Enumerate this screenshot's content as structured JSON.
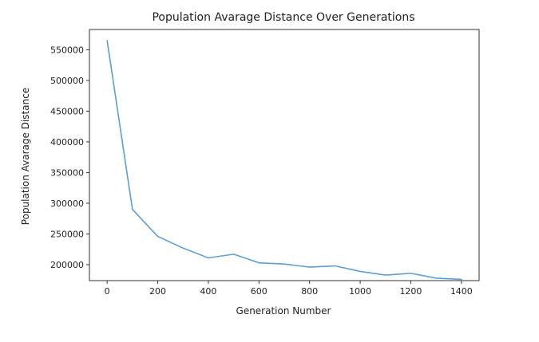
{
  "chart_data": {
    "type": "line",
    "title": "Population Avarage Distance Over Generations",
    "xlabel": "Generation Number",
    "ylabel": "Population Avarage Distance",
    "xlim": [
      -70,
      1470
    ],
    "ylim": [
      174000,
      583000
    ],
    "xticks": [
      0,
      200,
      400,
      600,
      800,
      1000,
      1200,
      1400
    ],
    "xtick_labels": [
      "0",
      "200",
      "400",
      "600",
      "800",
      "1000",
      "1200",
      "1400"
    ],
    "yticks": [
      200000,
      250000,
      300000,
      350000,
      400000,
      450000,
      500000,
      550000
    ],
    "ytick_labels": [
      "200000",
      "250000",
      "300000",
      "350000",
      "400000",
      "450000",
      "500000",
      "550000"
    ],
    "grid": false,
    "legend": "none",
    "series": [
      {
        "name": "Population Avarage Distance",
        "color": "#5b9fd6",
        "x": [
          0,
          100,
          200,
          300,
          400,
          500,
          600,
          700,
          800,
          900,
          1000,
          1100,
          1200,
          1300,
          1400
        ],
        "y": [
          565000,
          290000,
          246000,
          227000,
          211000,
          217000,
          203000,
          201000,
          196000,
          198000,
          189000,
          183000,
          186000,
          178000,
          176000
        ]
      }
    ]
  }
}
